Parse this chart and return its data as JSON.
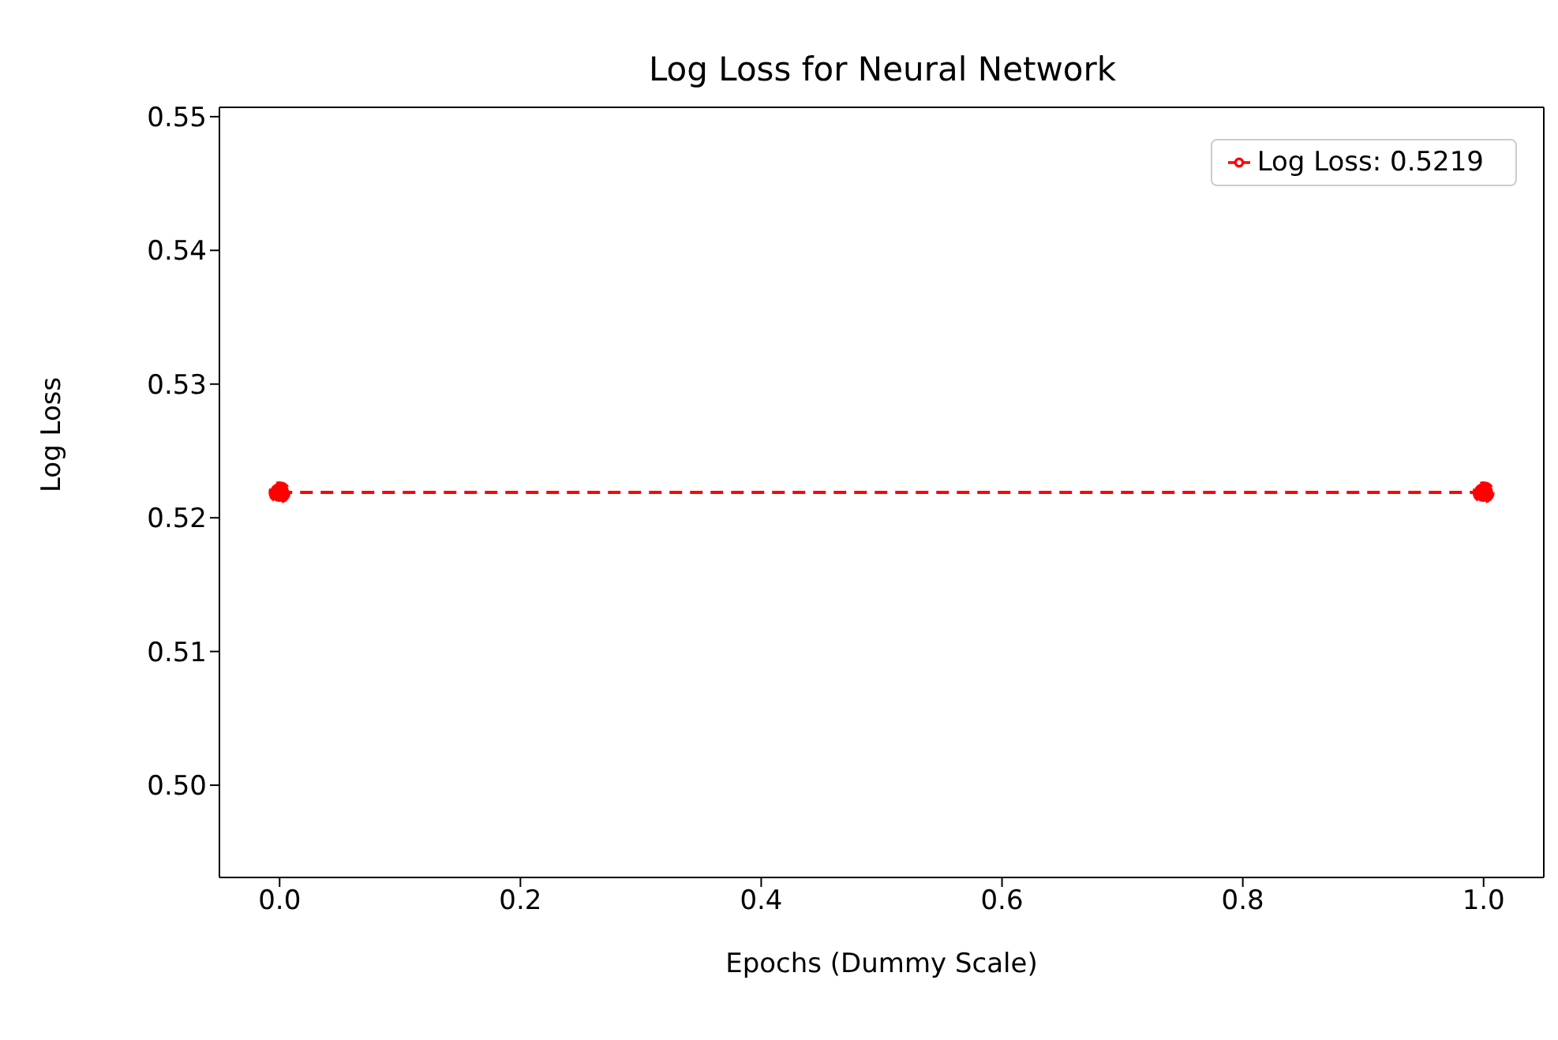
{
  "chart_data": {
    "type": "line",
    "title": "Log Loss for Neural Network",
    "xlabel": "Epochs (Dummy Scale)",
    "ylabel": "Log Loss",
    "x": [
      0,
      1
    ],
    "series": [
      {
        "name": "Log Loss: 0.5219",
        "color": "#ff0000",
        "values": [
          0.5219,
          0.5219
        ]
      }
    ],
    "xlim": [
      -0.05,
      1.05
    ],
    "ylim": [
      0.4931,
      0.5507
    ],
    "xticks": [
      {
        "value": 0,
        "label": "0.0"
      },
      {
        "value": 0.2,
        "label": "0.2"
      },
      {
        "value": 0.4,
        "label": "0.4"
      },
      {
        "value": 0.6,
        "label": "0.6"
      },
      {
        "value": 0.8,
        "label": "0.8"
      },
      {
        "value": 1,
        "label": "1.0"
      }
    ],
    "yticks": [
      {
        "value": 0.5,
        "label": "0.50"
      },
      {
        "value": 0.51,
        "label": "0.51"
      },
      {
        "value": 0.52,
        "label": "0.52"
      },
      {
        "value": 0.53,
        "label": "0.53"
      },
      {
        "value": 0.54,
        "label": "0.54"
      },
      {
        "value": 0.55,
        "label": "0.55"
      }
    ],
    "legend": "top right",
    "marker": "circle",
    "line_style": "dashed"
  }
}
